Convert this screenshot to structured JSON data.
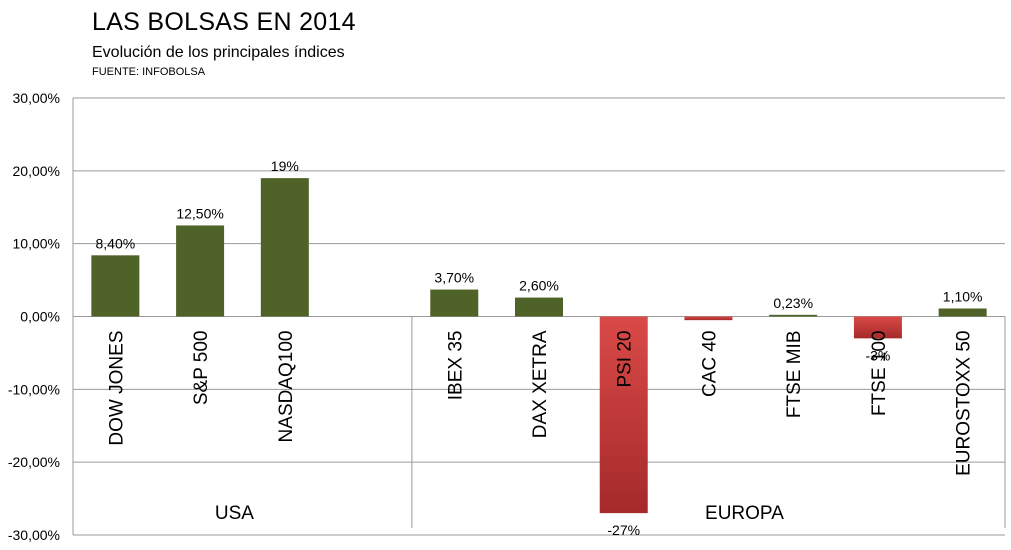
{
  "chart_data": {
    "type": "bar",
    "title": "LAS BOLSAS EN 2014",
    "subtitle": "Evolución de los principales índices",
    "source": "FUENTE: INFOBOLSA",
    "ylim": [
      -30,
      30
    ],
    "yticks": [
      "30,00%",
      "20,00%",
      "10,00%",
      "0,00%",
      "-10,00%",
      "-20,00%",
      "-30,00%"
    ],
    "grid": true,
    "categories": [
      "DOW JONES",
      "S&P 500",
      "NASDAQ100",
      "",
      "IBEX 35",
      "DAX XETRA",
      "PSI 20",
      "CAC 40",
      "FTSE MIB",
      "FTSE 100",
      "EUROSTOXX 50"
    ],
    "values": [
      8.4,
      12.5,
      19,
      null,
      3.7,
      2.6,
      -27,
      -0.5,
      0.23,
      -3,
      1.1
    ],
    "data_labels": [
      "8,40%",
      "12,50%",
      "19%",
      "",
      "3,70%",
      "2,60%",
      "-27%",
      "",
      "0,23%",
      "-3%",
      "1,10%"
    ],
    "groups": [
      {
        "name": "USA",
        "start": 0,
        "end": 3
      },
      {
        "name": "EUROPA",
        "start": 4,
        "end": 10
      }
    ],
    "colors": {
      "positive": "#4f6228",
      "negative_top": "#d94a48",
      "negative_bottom": "#a52a2a",
      "grid": "#9a9a9a"
    }
  }
}
